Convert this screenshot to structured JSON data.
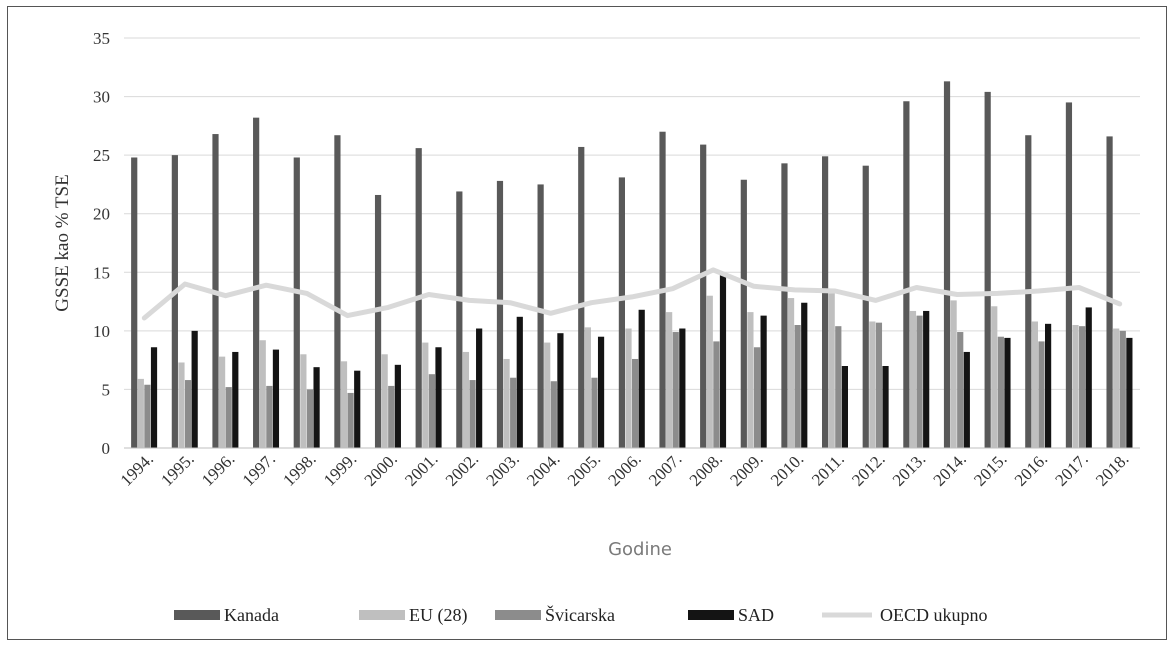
{
  "chart_data": {
    "type": "bar",
    "title": "",
    "xlabel": "Godine",
    "ylabel": "GSSE kao % TSE",
    "ylim": [
      0,
      35
    ],
    "yticks": [
      "0",
      "5",
      "10",
      "15",
      "20",
      "25",
      "30",
      "35"
    ],
    "grid": true,
    "legend_position": "bottom",
    "categories": [
      "1994.",
      "1995.",
      "1996.",
      "1997.",
      "1998.",
      "1999.",
      "2000.",
      "2001.",
      "2002.",
      "2003.",
      "2004.",
      "2005.",
      "2006.",
      "2007.",
      "2008.",
      "2009.",
      "2010.",
      "2011.",
      "2012.",
      "2013.",
      "2014.",
      "2015.",
      "2016.",
      "2017.",
      "2018."
    ],
    "series": [
      {
        "name": "Kanada",
        "kind": "bar",
        "color": "#595959",
        "values": [
          24.8,
          25.0,
          26.8,
          28.2,
          24.8,
          26.7,
          21.6,
          25.6,
          21.9,
          22.8,
          22.5,
          25.7,
          23.1,
          27.0,
          25.9,
          22.9,
          24.3,
          24.9,
          24.1,
          29.6,
          31.3,
          30.4,
          26.7,
          29.5,
          26.6
        ]
      },
      {
        "name": "EU (28)",
        "kind": "bar",
        "color": "#bfbfbf",
        "values": [
          5.9,
          7.3,
          7.8,
          9.2,
          8.0,
          7.4,
          8.0,
          9.0,
          8.2,
          7.6,
          9.0,
          10.3,
          10.2,
          11.6,
          13.0,
          11.6,
          12.8,
          13.2,
          10.8,
          11.7,
          12.6,
          12.1,
          10.8,
          10.5,
          10.2
        ]
      },
      {
        "name": "Švicarska",
        "kind": "bar",
        "color": "#8c8c8c",
        "values": [
          5.4,
          5.8,
          5.2,
          5.3,
          5.0,
          4.7,
          5.3,
          6.3,
          5.8,
          6.0,
          5.7,
          6.0,
          7.6,
          9.9,
          9.1,
          8.6,
          10.5,
          10.4,
          10.7,
          11.3,
          9.9,
          9.5,
          9.1,
          10.4,
          10.0
        ]
      },
      {
        "name": "SAD",
        "kind": "bar",
        "color": "#141414",
        "values": [
          8.6,
          10.0,
          8.2,
          8.4,
          6.9,
          6.6,
          7.1,
          8.6,
          10.2,
          11.2,
          9.8,
          9.5,
          11.8,
          10.2,
          14.8,
          11.3,
          12.4,
          7.0,
          7.0,
          11.7,
          8.2,
          9.4,
          10.6,
          12.0,
          9.4
        ]
      },
      {
        "name": "OECD ukupno",
        "kind": "line",
        "color": "#d9d9d9",
        "values": [
          11.1,
          14.0,
          13.0,
          13.9,
          13.2,
          11.3,
          12.0,
          13.1,
          12.6,
          12.4,
          11.5,
          12.4,
          12.9,
          13.6,
          15.2,
          13.8,
          13.5,
          13.4,
          12.6,
          13.7,
          13.1,
          13.2,
          13.4,
          13.7,
          12.3
        ]
      }
    ]
  }
}
